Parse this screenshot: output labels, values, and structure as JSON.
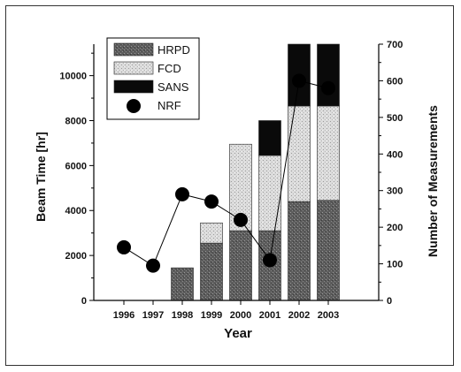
{
  "chart_data": {
    "type": "bar",
    "categories": [
      "1996",
      "1997",
      "1998",
      "1999",
      "2000",
      "2001",
      "2002",
      "2003"
    ],
    "xlabel": "Year",
    "ylabel": "Beam Time [hr]",
    "y2label": "Number of Measurements",
    "ylim": [
      0,
      11400
    ],
    "y2lim": [
      0,
      700
    ],
    "yticks": [
      0,
      2000,
      4000,
      6000,
      8000,
      10000
    ],
    "y2ticks": [
      0,
      100,
      200,
      300,
      400,
      500,
      600,
      700
    ],
    "stacked": true,
    "series": [
      {
        "name": "HRPD",
        "axis": "left",
        "color": "#6e6e6e",
        "pattern": "dark-speckle",
        "values": [
          0,
          0,
          1450,
          2550,
          3100,
          3100,
          4400,
          4450
        ]
      },
      {
        "name": "FCD",
        "axis": "left",
        "color": "#d6d6d6",
        "pattern": "light-speckle",
        "values": [
          0,
          0,
          0,
          900,
          3850,
          3350,
          4250,
          4200
        ]
      },
      {
        "name": "SANS",
        "axis": "left",
        "color": "#0a0a0a",
        "pattern": "solid",
        "values": [
          0,
          0,
          0,
          0,
          0,
          1550,
          2750,
          2750
        ]
      },
      {
        "name": "NRF",
        "axis": "right",
        "type": "line",
        "marker": "circle",
        "color": "#000000",
        "values": [
          145,
          95,
          290,
          270,
          220,
          110,
          600,
          580
        ]
      }
    ],
    "legend_position": "top-left",
    "grid": false
  }
}
